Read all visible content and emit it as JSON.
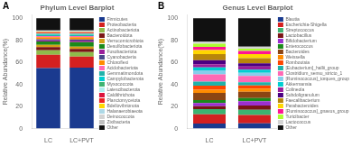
{
  "chart_data": [
    {
      "type": "bar",
      "stacked": true,
      "title": "Phylum Level Barplot",
      "annotations": [
        "A"
      ],
      "y_label": "Relative Abundance(%)",
      "categories": [
        "LC",
        "LC+PVT"
      ],
      "ylim": [
        0,
        103
      ],
      "yticks": [
        0,
        20,
        40,
        60,
        80,
        100
      ],
      "grid": false,
      "legend": "right",
      "series": [
        {
          "name": "Firmicutes",
          "color": "#1a3a8f",
          "values": [
            54.9451,
            55.2209
          ]
        },
        {
          "name": "Proteobacteria",
          "color": "#d42020",
          "values": [
            11.988,
            10.0402
          ]
        },
        {
          "name": "Actinobacteriota",
          "color": "#8fba4a",
          "values": [
            3.996,
            4.0161
          ]
        },
        {
          "name": "Bacteroidota",
          "color": "#7a1515",
          "values": [
            2.997,
            3.012
          ]
        },
        {
          "name": "Verrucomicrobiota",
          "color": "#d4a017",
          "values": [
            1.998,
            2.008
          ]
        },
        {
          "name": "Desulfobacteriota",
          "color": "#1a8a1a",
          "values": [
            2.997,
            4.0161
          ]
        },
        {
          "name": "Fusobacteriota",
          "color": "#9b1f9b",
          "values": [
            0.999,
            1.506
          ]
        },
        {
          "name": "Cyanobacteria",
          "color": "#4a4a8b",
          "values": [
            0.999,
            1.004
          ]
        },
        {
          "name": "Chloroflexi",
          "color": "#ff8c00",
          "values": [
            1.998,
            2.008
          ]
        },
        {
          "name": "Acidobacteriota",
          "color": "#ff69b4",
          "values": [
            0.999,
            1.004
          ]
        },
        {
          "name": "Gemmatimondota",
          "color": "#20b2aa",
          "values": [
            0.999,
            1.004
          ]
        },
        {
          "name": "Campylobacterota",
          "color": "#00ced1",
          "values": [
            0.4995,
            0.502
          ]
        },
        {
          "name": "Myxococcota",
          "color": "#3cb371",
          "values": [
            0.4995,
            0.502
          ]
        },
        {
          "name": "Latescibacterota",
          "color": "#afeeee",
          "values": [
            0.4995,
            0.502
          ]
        },
        {
          "name": "Caldithrichota",
          "color": "#dc143c",
          "values": [
            0.4995,
            0.502
          ]
        },
        {
          "name": "Planctomycetota",
          "color": "#ee2222",
          "values": [
            0.4995,
            0.502
          ]
        },
        {
          "name": "Bdellovibrionota",
          "color": "#ffd700",
          "values": [
            0.4995,
            0.502
          ]
        },
        {
          "name": "Halanaerobiaeota",
          "color": "#add8e6",
          "values": [
            0.4995,
            0.502
          ]
        },
        {
          "name": "Deinococcota",
          "color": "#d3d3d3",
          "values": [
            0.2997,
            0.3012
          ]
        },
        {
          "name": "Zixibacteria",
          "color": "#c0c0c0",
          "values": [
            0.2997,
            0.3012
          ]
        },
        {
          "name": "Other",
          "color": "#111111",
          "values": [
            10.989,
            11.0442
          ]
        }
      ]
    },
    {
      "type": "bar",
      "stacked": true,
      "title": "Genus Level Barplot",
      "annotations": [
        "B"
      ],
      "y_label": "Relative Abundance(%)",
      "categories": [
        "LC",
        "LC+PVT"
      ],
      "ylim": [
        0,
        103
      ],
      "yticks": [
        0,
        20,
        40,
        60,
        80,
        100
      ],
      "grid": false,
      "legend": "right",
      "series": [
        {
          "name": "Blautia",
          "color": "#1a3a8f",
          "values": [
            4.6296,
            4.7619
          ]
        },
        {
          "name": "Escherichia-Shigella",
          "color": "#d42020",
          "values": [
            8.3333,
            7.619
          ]
        },
        {
          "name": "Streptococcus",
          "color": "#3cb371",
          "values": [
            4.6296,
            4.7619
          ]
        },
        {
          "name": "Lactobacillus",
          "color": "#7a1515",
          "values": [
            2.7778,
            3.8095
          ]
        },
        {
          "name": "Bifidobacterium",
          "color": "#9b30d0",
          "values": [
            2.7778,
            3.8095
          ]
        },
        {
          "name": "Enterococcus",
          "color": "#1a8a1a",
          "values": [
            2.7778,
            2.8571
          ]
        },
        {
          "name": "Bacteroides",
          "color": "#8b4513",
          "values": [
            6.4815,
            5.7143
          ]
        },
        {
          "name": "Weissella",
          "color": "#ff8c00",
          "values": [
            2.7778,
            2.8571
          ]
        },
        {
          "name": "Romboutsia",
          "color": "#ff4500",
          "values": [
            3.7037,
            2.8571
          ]
        },
        {
          "name": "[Eubacterium]_hallii_group",
          "color": "#20b2aa",
          "values": [
            3.7037,
            2.8571
          ]
        },
        {
          "name": "Clostridium_sensu_stricto_1",
          "color": "#ff69b4",
          "values": [
            6.4815,
            5.7143
          ]
        },
        {
          "name": "[Ruminococcus]_torques_group",
          "color": "#87ceeb",
          "values": [
            3.7037,
            2.8571
          ]
        },
        {
          "name": "Akkermansia",
          "color": "#00ced1",
          "values": [
            2.7778,
            2.8571
          ]
        },
        {
          "name": "Colineola",
          "color": "#9b1f9b",
          "values": [
            2.7778,
            2.8571
          ]
        },
        {
          "name": "Subdoligranulum",
          "color": "#4b0082",
          "values": [
            3.7037,
            2.8571
          ]
        },
        {
          "name": "Faecalibacterium",
          "color": "#b8860b",
          "values": [
            5.5556,
            4.7619
          ]
        },
        {
          "name": "Parabacteroides",
          "color": "#ffd700",
          "values": [
            3.7037,
            3.8095
          ]
        },
        {
          "name": "[Ruminococcus]_gnavus_group",
          "color": "#ff1493",
          "values": [
            2.7778,
            2.8571
          ]
        },
        {
          "name": "Turicibacter",
          "color": "#adff2f",
          "values": [
            2.7778,
            1.9048
          ]
        },
        {
          "name": "Lactococcus",
          "color": "#d3d3d3",
          "values": [
            1.8519,
            1.9048
          ]
        },
        {
          "name": "Other",
          "color": "#111111",
          "values": [
            21.2963,
            25.7143
          ]
        }
      ]
    }
  ]
}
